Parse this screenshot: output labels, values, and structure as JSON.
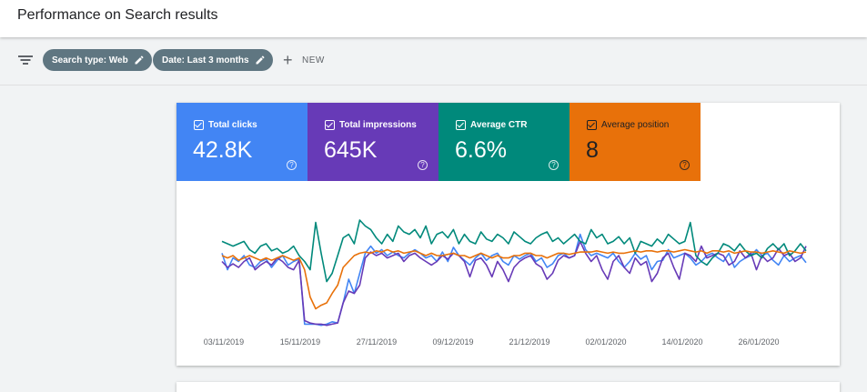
{
  "header": {
    "title": "Performance on Search results"
  },
  "filters": {
    "chips": [
      {
        "label": "Search type: Web",
        "icon": "pencil-icon"
      },
      {
        "label": "Date: Last 3 months",
        "icon": "pencil-icon"
      }
    ],
    "new_label": "NEW"
  },
  "metrics": [
    {
      "label": "Total clicks",
      "value": "42.8K",
      "color": "#4285f4"
    },
    {
      "label": "Total impressions",
      "value": "645K",
      "color": "#673ab7"
    },
    {
      "label": "Average CTR",
      "value": "6.6%",
      "color": "#00897b"
    },
    {
      "label": "Average position",
      "value": "8",
      "color": "#e8710a"
    }
  ],
  "chart_data": {
    "type": "line",
    "x_tick_labels": [
      "03/11/2019",
      "15/11/2019",
      "27/11/2019",
      "09/12/2019",
      "21/12/2019",
      "02/01/2020",
      "14/01/2020",
      "26/01/2020"
    ],
    "y_axis_shown": false,
    "grid": false,
    "legend": "none",
    "value_scale": "relative (0-100, unitless; metrics share no common axis)",
    "series": [
      {
        "color": "#4285f4",
        "values": [
          62,
          48,
          58,
          55,
          60,
          52,
          50,
          55,
          57,
          50,
          56,
          60,
          52,
          55,
          57,
          2,
          2,
          2,
          1,
          2,
          4,
          3,
          20,
          40,
          28,
          45,
          62,
          68,
          62,
          65,
          60,
          63,
          60,
          58,
          62,
          65,
          62,
          58,
          60,
          55,
          63,
          55,
          67,
          60,
          56,
          52,
          58,
          62,
          56,
          60,
          62,
          55,
          52,
          60,
          57,
          60,
          62,
          55,
          58,
          50,
          53,
          60,
          62,
          58,
          60,
          78,
          65,
          60,
          62,
          60,
          58,
          62,
          55,
          50,
          55,
          62,
          57,
          60,
          48,
          55,
          56,
          65,
          58,
          60,
          62,
          58,
          52,
          55,
          60,
          62,
          58,
          55,
          62,
          50,
          55,
          58,
          60,
          65,
          60,
          62,
          56,
          52,
          60,
          55,
          58,
          60,
          54
        ]
      },
      {
        "color": "#673ab7",
        "values": [
          55,
          50,
          53,
          50,
          55,
          58,
          48,
          52,
          55,
          52,
          58,
          55,
          50,
          48,
          56,
          5,
          3,
          2,
          2,
          1,
          2,
          3,
          20,
          30,
          28,
          35,
          58,
          63,
          60,
          62,
          58,
          60,
          62,
          55,
          60,
          62,
          58,
          55,
          52,
          55,
          60,
          57,
          62,
          60,
          55,
          42,
          56,
          58,
          52,
          42,
          55,
          48,
          38,
          50,
          55,
          58,
          60,
          53,
          50,
          40,
          45,
          56,
          60,
          58,
          60,
          72,
          62,
          55,
          60,
          48,
          40,
          55,
          60,
          50,
          45,
          58,
          52,
          55,
          38,
          45,
          58,
          62,
          50,
          40,
          62,
          60,
          55,
          68,
          58,
          60,
          62,
          60,
          52,
          55,
          64,
          58,
          62,
          48,
          60,
          55,
          58,
          66,
          60,
          62,
          55,
          58,
          68
        ]
      },
      {
        "color": "#00897b",
        "values": [
          72,
          70,
          68,
          70,
          72,
          65,
          62,
          68,
          70,
          64,
          66,
          62,
          64,
          68,
          60,
          55,
          48,
          88,
          62,
          38,
          45,
          60,
          75,
          78,
          70,
          90,
          85,
          82,
          75,
          70,
          78,
          72,
          85,
          80,
          78,
          82,
          75,
          85,
          70,
          78,
          80,
          75,
          82,
          70,
          78,
          72,
          70,
          80,
          74,
          72,
          78,
          75,
          70,
          80,
          76,
          72,
          70,
          75,
          78,
          80,
          72,
          75,
          70,
          74,
          78,
          72,
          70,
          82,
          75,
          78,
          70,
          72,
          76,
          70,
          75,
          62,
          72,
          70,
          68,
          74,
          70,
          78,
          74,
          70,
          72,
          88,
          60,
          55,
          52,
          58,
          62,
          70,
          68,
          64,
          70,
          64,
          60,
          62,
          58,
          66,
          70,
          65,
          70,
          60,
          64,
          70,
          64
        ]
      },
      {
        "color": "#e8710a",
        "values": [
          60,
          58,
          60,
          56,
          58,
          60,
          58,
          56,
          58,
          56,
          58,
          60,
          58,
          56,
          58,
          48,
          25,
          15,
          18,
          20,
          28,
          35,
          50,
          55,
          60,
          62,
          63,
          62,
          64,
          63,
          65,
          63,
          64,
          62,
          63,
          64,
          62,
          60,
          62,
          60,
          60,
          61,
          62,
          60,
          60,
          58,
          60,
          62,
          60,
          58,
          60,
          58,
          58,
          60,
          60,
          62,
          62,
          60,
          60,
          58,
          60,
          62,
          62,
          61,
          62,
          63,
          63,
          63,
          64,
          63,
          62,
          63,
          62,
          62,
          63,
          64,
          63,
          64,
          64,
          63,
          64,
          64,
          63,
          64,
          65,
          64,
          63,
          64,
          62,
          64,
          64,
          63,
          64,
          62,
          63,
          64,
          63,
          63,
          62,
          63,
          64,
          63,
          62,
          64,
          63,
          62,
          63
        ]
      }
    ]
  }
}
